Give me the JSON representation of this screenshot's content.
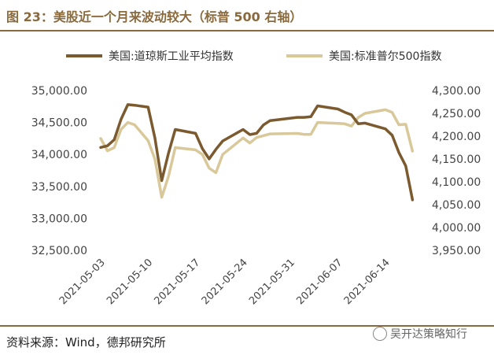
{
  "title": "图 23：美股近一个月来波动较大（标普 500 右轴）",
  "source": "资料来源：Wind，德邦研究所",
  "watermark": "吴开达策略知行",
  "chart_data": {
    "type": "line",
    "x_tick_labels": [
      "2021-05-03",
      "2021-05-10",
      "2021-05-17",
      "2021-05-24",
      "2021-05-31",
      "2021-06-07",
      "2021-06-14"
    ],
    "y_left": {
      "ticks": [
        "32,500.00",
        "33,000.00",
        "33,500.00",
        "34,000.00",
        "34,500.00",
        "35,000.00"
      ],
      "range": [
        32500,
        35000
      ]
    },
    "y_right": {
      "ticks": [
        "3,950.00",
        "4,000.00",
        "4,050.00",
        "4,100.00",
        "4,150.00",
        "4,200.00",
        "4,250.00",
        "4,300.00"
      ],
      "range": [
        3950,
        4300
      ]
    },
    "series": [
      {
        "name": "美国:道琼斯工业平均指数",
        "axis": "left",
        "color": "#7a5a2e",
        "x": [
          "2021-05-03",
          "2021-05-04",
          "2021-05-05",
          "2021-05-06",
          "2021-05-07",
          "2021-05-08",
          "2021-05-10",
          "2021-05-11",
          "2021-05-12",
          "2021-05-13",
          "2021-05-14",
          "2021-05-17",
          "2021-05-18",
          "2021-05-19",
          "2021-05-20",
          "2021-05-21",
          "2021-05-24",
          "2021-05-25",
          "2021-05-26",
          "2021-05-27",
          "2021-05-28",
          "2021-06-01",
          "2021-06-02",
          "2021-06-03",
          "2021-06-04",
          "2021-06-07",
          "2021-06-08",
          "2021-06-09",
          "2021-06-10",
          "2021-06-11",
          "2021-06-14",
          "2021-06-15",
          "2021-06-16",
          "2021-06-17",
          "2021-06-18"
        ],
        "values": [
          34110,
          34135,
          34230,
          34550,
          34780,
          34770,
          34740,
          34260,
          33590,
          34020,
          34390,
          34330,
          34090,
          33930,
          34080,
          34210,
          34390,
          34310,
          34330,
          34460,
          34530,
          34580,
          34580,
          34590,
          34760,
          34710,
          34660,
          34620,
          34480,
          34490,
          34400,
          34300,
          34030,
          33820,
          33290
        ]
      },
      {
        "name": "美国:标准普尔500指数",
        "axis": "right",
        "color": "#d8c89a",
        "x": [
          "2021-05-03",
          "2021-05-04",
          "2021-05-05",
          "2021-05-06",
          "2021-05-07",
          "2021-05-08",
          "2021-05-10",
          "2021-05-11",
          "2021-05-12",
          "2021-05-13",
          "2021-05-14",
          "2021-05-17",
          "2021-05-18",
          "2021-05-19",
          "2021-05-20",
          "2021-05-21",
          "2021-05-24",
          "2021-05-25",
          "2021-05-26",
          "2021-05-27",
          "2021-05-28",
          "2021-06-01",
          "2021-06-02",
          "2021-06-03",
          "2021-06-04",
          "2021-06-07",
          "2021-06-08",
          "2021-06-09",
          "2021-06-10",
          "2021-06-11",
          "2021-06-14",
          "2021-06-15",
          "2021-06-16",
          "2021-06-17",
          "2021-06-18"
        ],
        "values": [
          4195,
          4168,
          4175,
          4215,
          4230,
          4225,
          4190,
          4150,
          4066,
          4112,
          4175,
          4170,
          4160,
          4130,
          4120,
          4160,
          4196,
          4185,
          4197,
          4201,
          4205,
          4206,
          4204,
          4204,
          4230,
          4228,
          4227,
          4222,
          4241,
          4250,
          4258,
          4252,
          4225,
          4226,
          4167
        ]
      }
    ],
    "legend": "top",
    "grid": false
  }
}
